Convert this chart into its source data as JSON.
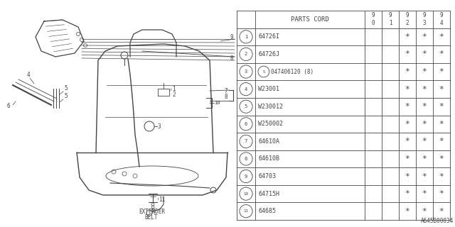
{
  "bg_color": "#ffffff",
  "line_color": "#444444",
  "parts": [
    {
      "num": "1",
      "code": "64726I",
      "s_prefix": false
    },
    {
      "num": "2",
      "code": "64726J",
      "s_prefix": false
    },
    {
      "num": "3",
      "code": "047406120 (8)",
      "s_prefix": true
    },
    {
      "num": "4",
      "code": "W23001",
      "s_prefix": false
    },
    {
      "num": "5",
      "code": "W230012",
      "s_prefix": false
    },
    {
      "num": "6",
      "code": "W250002",
      "s_prefix": false
    },
    {
      "num": "7",
      "code": "64610A",
      "s_prefix": false
    },
    {
      "num": "8",
      "code": "64610B",
      "s_prefix": false
    },
    {
      "num": "9",
      "code": "64703",
      "s_prefix": false
    },
    {
      "num": "10",
      "code": "64715H",
      "s_prefix": false
    },
    {
      "num": "11",
      "code": "64685",
      "s_prefix": false
    }
  ],
  "year_cols": [
    "9\n0",
    "9\n1",
    "9\n2",
    "9\n3",
    "9\n4"
  ],
  "avail_cols": [
    2,
    3,
    4
  ],
  "footer_code": "A645B00034"
}
